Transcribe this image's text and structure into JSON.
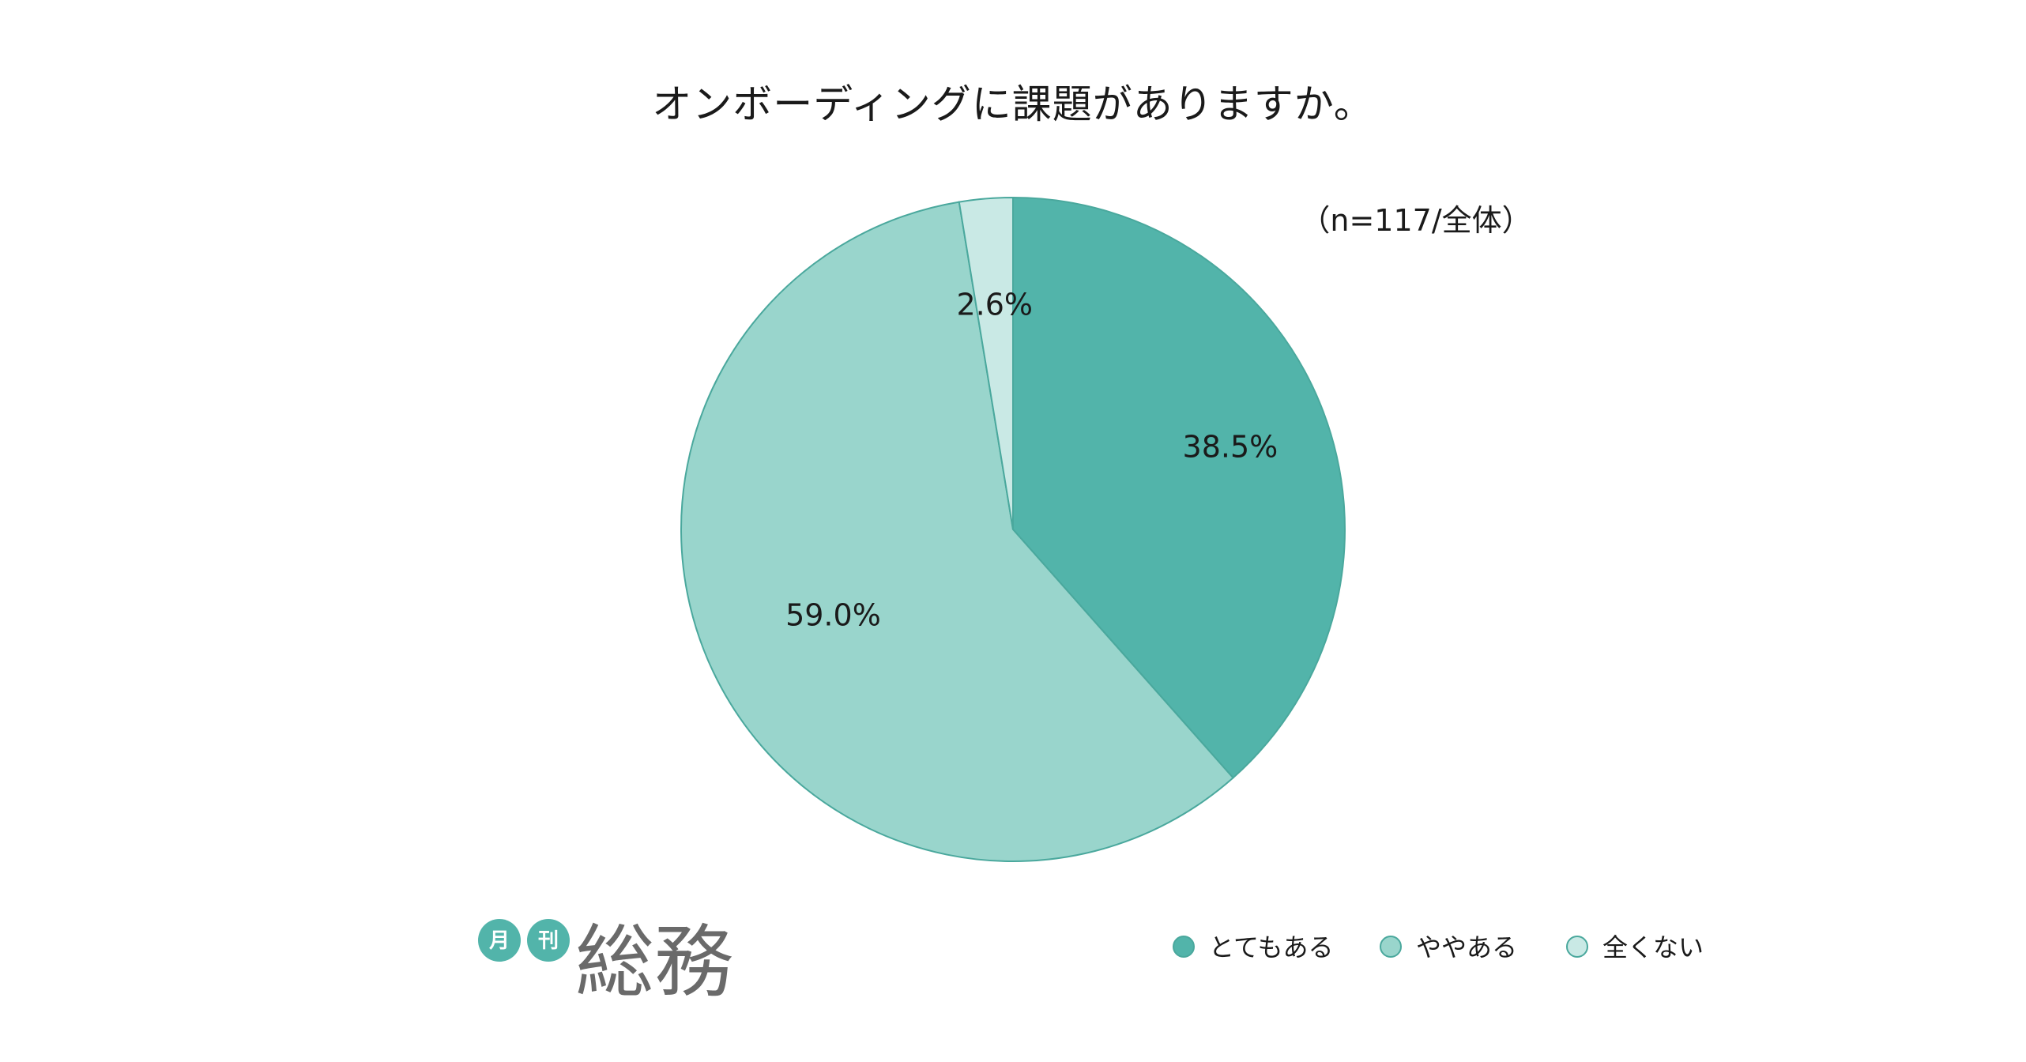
{
  "chart_data": {
    "type": "pie",
    "title": "オンボーディングに課題がありますか。",
    "sample_note": "（n=117/全体）",
    "categories": [
      "とてもある",
      "ややある",
      "全くない"
    ],
    "values": [
      38.5,
      59.0,
      2.6
    ],
    "value_labels": [
      "38.5%",
      "59.0%",
      "2.6%"
    ],
    "colors": [
      "#52b4aa",
      "#99d5cc",
      "#c9e9e5"
    ],
    "stroke_color": "#4aa89d",
    "start_angle": "12 o'clock",
    "direction": "clockwise",
    "legend_placement": "bottom-right"
  },
  "logo": {
    "circle_1": "月",
    "circle_2": "刊",
    "main": "総務",
    "circle_color": "#52b4aa",
    "text_color": "#6a6a6a"
  }
}
